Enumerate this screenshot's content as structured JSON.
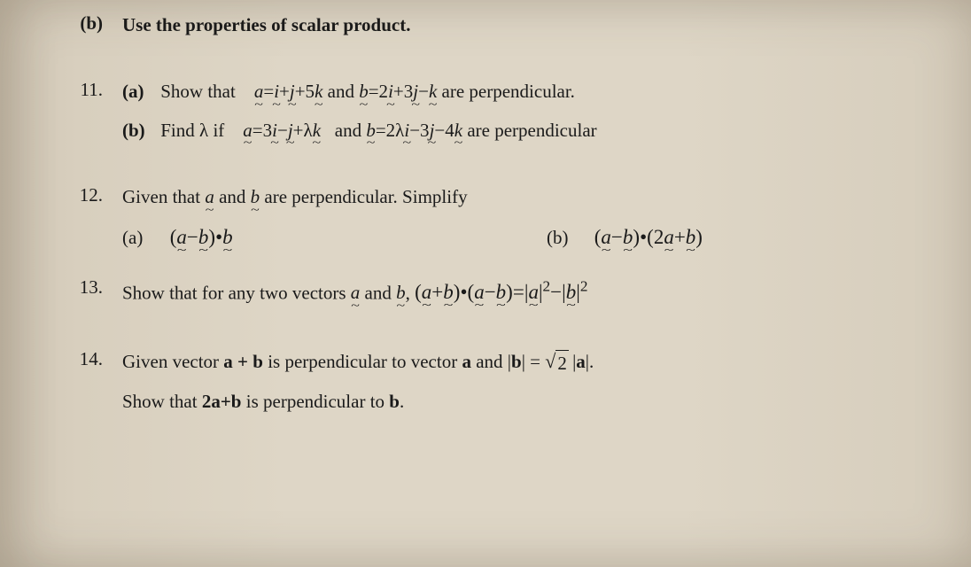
{
  "colors": {
    "background": "#d9d0c0",
    "text": "#1a1a1a"
  },
  "typography": {
    "font_family": "Times New Roman",
    "base_size_pt": 16,
    "bold_weight": 700
  },
  "heading": {
    "label": "(b)",
    "text": "Use the properties of scalar product."
  },
  "q11": {
    "num": "11.",
    "a": {
      "label": "(a)",
      "lead": "Show that",
      "eq1_lhs": "a",
      "eq1_eq": "=",
      "eq1_t1": "i",
      "eq1_p1": "+",
      "eq1_t2": "j",
      "eq1_p2": "+5",
      "eq1_t3": "k",
      "mid": " and ",
      "eq2_lhs": "b",
      "eq2_eq": "=2",
      "eq2_t1": "i",
      "eq2_p1": "+3",
      "eq2_t2": "j",
      "eq2_p2": "−",
      "eq2_t3": "k",
      "tail": " are perpendicular."
    },
    "b": {
      "label": "(b)",
      "lead": "Find λ if",
      "eq1_lhs": "a",
      "eq1_eq": "=3",
      "eq1_t1": "i",
      "eq1_p1": "−",
      "eq1_t2": "j",
      "eq1_p2": "+λ",
      "eq1_t3": "k",
      "mid": " and ",
      "eq2_lhs": "b",
      "eq2_eq": "=2λ",
      "eq2_t1": "i",
      "eq2_p1": "−3",
      "eq2_t2": "j",
      "eq2_p2": "−4",
      "eq2_t3": "k",
      "tail": " are perpendicular"
    }
  },
  "q12": {
    "num": "12.",
    "lead1": "Given that ",
    "v1": "a",
    "lead2": " and ",
    "v2": "b",
    "lead3": " are perpendicular. Simplify",
    "a": {
      "label": "(a)",
      "open": "(",
      "t1": "a",
      "op1": "−",
      "t2": "b",
      "close": ")",
      "dot": "•",
      "t3": "b"
    },
    "b": {
      "label": "(b)",
      "open1": "(",
      "t1": "a",
      "op1": "−",
      "t2": "b",
      "close1": ")",
      "dot": "•",
      "open2": "(",
      "c2": "2",
      "t3": "a",
      "op2": "+",
      "t4": "b",
      "close2": ")"
    }
  },
  "q13": {
    "num": "13.",
    "lead1": "Show that for any two vectors ",
    "v1": "a",
    "lead2": " and ",
    "v2": "b",
    "comma": ", ",
    "open1": "(",
    "t1": "a",
    "op1": "+",
    "t2": "b",
    "close1": ")",
    "dot": "•",
    "open2": "(",
    "t3": "a",
    "op2": "−",
    "t4": "b",
    "close2": ")",
    "eq": "=",
    "abs1": "a",
    "pow1": "2",
    "op3": "−",
    "abs2": "b",
    "pow2": "2"
  },
  "q14": {
    "num": "14.",
    "line1_a": "Given vector ",
    "ab": "a + b",
    "line1_b": " is perpendicular to vector ",
    "a": "a",
    "line1_c": " and ",
    "abs_b": "b",
    "eqs": " = ",
    "rad": "2",
    "abs_a": "a",
    "line1_d": ".",
    "line2_a": "Show that ",
    "twoab": "2a+b",
    "line2_b": " is perpendicular to ",
    "b": "b",
    "line2_c": "."
  }
}
